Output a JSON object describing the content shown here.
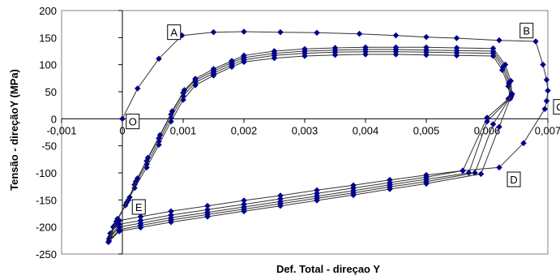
{
  "chart_data": {
    "type": "scatter",
    "xlabel": "Def. Total - direçao Y",
    "ylabel": "Tensão - direçãoY (MPa)",
    "xlim": [
      -0.001,
      0.007
    ],
    "ylim": [
      -250,
      200
    ],
    "x_ticks": [
      -0.001,
      0,
      0.001,
      0.002,
      0.003,
      0.004,
      0.005,
      0.006,
      0.007
    ],
    "x_tick_labels": [
      "-0,001",
      "0",
      "0,001",
      "0,002",
      "0,003",
      "0,004",
      "0,005",
      "0,006",
      "0,007"
    ],
    "y_ticks": [
      -250,
      -200,
      -150,
      -100,
      -50,
      0,
      50,
      100,
      150,
      200
    ],
    "y_tick_labels": [
      "-250",
      "-200",
      "-150",
      "-100",
      "-50",
      "0",
      "50",
      "100",
      "150",
      "200"
    ],
    "grid": false,
    "legend": "none",
    "marker_color": "#00008B",
    "line_color": "#333333",
    "annotations": [
      {
        "text": "A",
        "x": 0.00085,
        "y": 160
      },
      {
        "text": "B",
        "x": 0.00665,
        "y": 163
      },
      {
        "text": "C",
        "x": 0.0072,
        "y": 22
      },
      {
        "text": "D",
        "x": 0.00644,
        "y": -112
      },
      {
        "text": "E",
        "x": 0.00027,
        "y": -163
      },
      {
        "text": "O",
        "x": 0.00017,
        "y": -5
      }
    ],
    "series": [
      {
        "points": [
          [
            0,
            0
          ],
          [
            0.00025,
            56
          ],
          [
            0.0006,
            111
          ],
          [
            0.00098,
            154
          ],
          [
            0.0015,
            160
          ],
          [
            0.002,
            161
          ],
          [
            0.0026,
            160
          ],
          [
            0.0032,
            159
          ],
          [
            0.0039,
            157
          ],
          [
            0.0045,
            154
          ],
          [
            0.005,
            151
          ],
          [
            0.0055,
            149
          ],
          [
            0.0062,
            145
          ],
          [
            0.0068,
            143
          ],
          [
            0.00692,
            100
          ],
          [
            0.00698,
            72
          ],
          [
            0.007,
            52
          ],
          [
            0.00698,
            33
          ],
          [
            0.00695,
            18
          ],
          [
            0.0066,
            -45
          ],
          [
            0.0062,
            -90
          ],
          [
            0.0056,
            -96
          ],
          [
            0.005,
            -104
          ],
          [
            0.0044,
            -113
          ],
          [
            0.0038,
            -123
          ],
          [
            0.0032,
            -132
          ],
          [
            0.0026,
            -142
          ],
          [
            0.002,
            -151
          ],
          [
            0.0014,
            -161
          ],
          [
            0.0008,
            -171
          ],
          [
            0.0003,
            -181
          ],
          [
            -5e-05,
            -188
          ],
          [
            -0.0002,
            -212
          ],
          [
            -0.00015,
            -200
          ],
          [
            5e-05,
            -160
          ],
          [
            0.0002,
            -128
          ],
          [
            0.0004,
            -90
          ],
          [
            0.0006,
            -48
          ],
          [
            0.0008,
            -5
          ],
          [
            0.001,
            35
          ],
          [
            0.0012,
            62
          ],
          [
            0.0015,
            80
          ],
          [
            0.0018,
            96
          ],
          [
            0.002,
            105
          ],
          [
            0.0025,
            112
          ],
          [
            0.003,
            116
          ],
          [
            0.0035,
            118
          ],
          [
            0.004,
            119
          ],
          [
            0.0045,
            119
          ],
          [
            0.005,
            118
          ],
          [
            0.0055,
            117
          ],
          [
            0.0061,
            116
          ],
          [
            0.00625,
            90
          ],
          [
            0.00635,
            60
          ],
          [
            0.00638,
            37
          ]
        ]
      },
      {
        "points": [
          [
            0.00635,
            37
          ],
          [
            0.006,
            2
          ],
          [
            0.0056,
            -96
          ],
          [
            0.005,
            -108
          ],
          [
            0.0044,
            -118
          ],
          [
            0.0038,
            -128
          ],
          [
            0.0032,
            -138
          ],
          [
            0.0026,
            -148
          ],
          [
            0.002,
            -158
          ],
          [
            0.0014,
            -168
          ],
          [
            0.0008,
            -178
          ],
          [
            0.0003,
            -188
          ],
          [
            -5e-05,
            -195
          ],
          [
            -0.0002,
            -218
          ],
          [
            -0.00012,
            -196
          ],
          [
            7e-05,
            -155
          ],
          [
            0.0002,
            -122
          ],
          [
            0.0004,
            -84
          ],
          [
            0.0006,
            -42
          ],
          [
            0.0008,
            2
          ],
          [
            0.001,
            42
          ],
          [
            0.0012,
            67
          ],
          [
            0.0015,
            84
          ],
          [
            0.0018,
            100
          ],
          [
            0.002,
            109
          ],
          [
            0.0025,
            117
          ],
          [
            0.003,
            121
          ],
          [
            0.0035,
            123
          ],
          [
            0.004,
            124
          ],
          [
            0.0045,
            124
          ],
          [
            0.005,
            123
          ],
          [
            0.0055,
            122
          ],
          [
            0.0061,
            121
          ],
          [
            0.00626,
            95
          ],
          [
            0.00636,
            65
          ],
          [
            0.00639,
            40
          ]
        ]
      },
      {
        "points": [
          [
            0.00639,
            40
          ],
          [
            0.006,
            -5
          ],
          [
            0.0057,
            -100
          ],
          [
            0.005,
            -112
          ],
          [
            0.0044,
            -122
          ],
          [
            0.0038,
            -133
          ],
          [
            0.0032,
            -143
          ],
          [
            0.0026,
            -153
          ],
          [
            0.002,
            -163
          ],
          [
            0.0014,
            -173
          ],
          [
            0.0008,
            -183
          ],
          [
            0.0003,
            -193
          ],
          [
            -5e-05,
            -200
          ],
          [
            -0.00022,
            -222
          ],
          [
            -0.0001,
            -190
          ],
          [
            0.0001,
            -150
          ],
          [
            0.00022,
            -116
          ],
          [
            0.0004,
            -78
          ],
          [
            0.0006,
            -36
          ],
          [
            0.0008,
            8
          ],
          [
            0.001,
            48
          ],
          [
            0.0012,
            71
          ],
          [
            0.0015,
            88
          ],
          [
            0.0018,
            104
          ],
          [
            0.002,
            113
          ],
          [
            0.0025,
            121
          ],
          [
            0.003,
            125
          ],
          [
            0.0035,
            127
          ],
          [
            0.004,
            128
          ],
          [
            0.0045,
            128
          ],
          [
            0.005,
            127
          ],
          [
            0.0055,
            126
          ],
          [
            0.0061,
            125
          ],
          [
            0.00628,
            98
          ],
          [
            0.00637,
            68
          ],
          [
            0.0064,
            43
          ]
        ]
      },
      {
        "points": [
          [
            0.0064,
            43
          ],
          [
            0.0061,
            -10
          ],
          [
            0.0058,
            -100
          ],
          [
            0.005,
            -116
          ],
          [
            0.0044,
            -126
          ],
          [
            0.0038,
            -137
          ],
          [
            0.0032,
            -147
          ],
          [
            0.0026,
            -157
          ],
          [
            0.002,
            -167
          ],
          [
            0.0014,
            -177
          ],
          [
            0.0008,
            -187
          ],
          [
            0.0003,
            -197
          ],
          [
            -5e-05,
            -205
          ],
          [
            -0.00022,
            -226
          ],
          [
            -8e-05,
            -185
          ],
          [
            0.00012,
            -145
          ],
          [
            0.00025,
            -110
          ],
          [
            0.00042,
            -72
          ],
          [
            0.00062,
            -30
          ],
          [
            0.00082,
            14
          ],
          [
            0.00102,
            53
          ],
          [
            0.0012,
            74
          ],
          [
            0.0015,
            92
          ],
          [
            0.0018,
            107
          ],
          [
            0.002,
            117
          ],
          [
            0.0025,
            125
          ],
          [
            0.003,
            129
          ],
          [
            0.0035,
            131
          ],
          [
            0.004,
            132
          ],
          [
            0.0045,
            132
          ],
          [
            0.005,
            132
          ],
          [
            0.0055,
            131
          ],
          [
            0.0061,
            130
          ],
          [
            0.0063,
            100
          ],
          [
            0.00639,
            70
          ],
          [
            0.00641,
            46
          ]
        ]
      },
      {
        "points": [
          [
            0.00641,
            46
          ],
          [
            0.0062,
            -15
          ],
          [
            0.0059,
            -102
          ],
          [
            0.005,
            -120
          ],
          [
            0.0044,
            -130
          ],
          [
            0.0038,
            -141
          ],
          [
            0.0032,
            -151
          ],
          [
            0.0026,
            -161
          ],
          [
            0.002,
            -171
          ],
          [
            0.0014,
            -181
          ],
          [
            0.0008,
            -191
          ],
          [
            0.0003,
            -201
          ],
          [
            -5e-05,
            -208
          ],
          [
            -0.00023,
            -228
          ]
        ]
      }
    ]
  }
}
